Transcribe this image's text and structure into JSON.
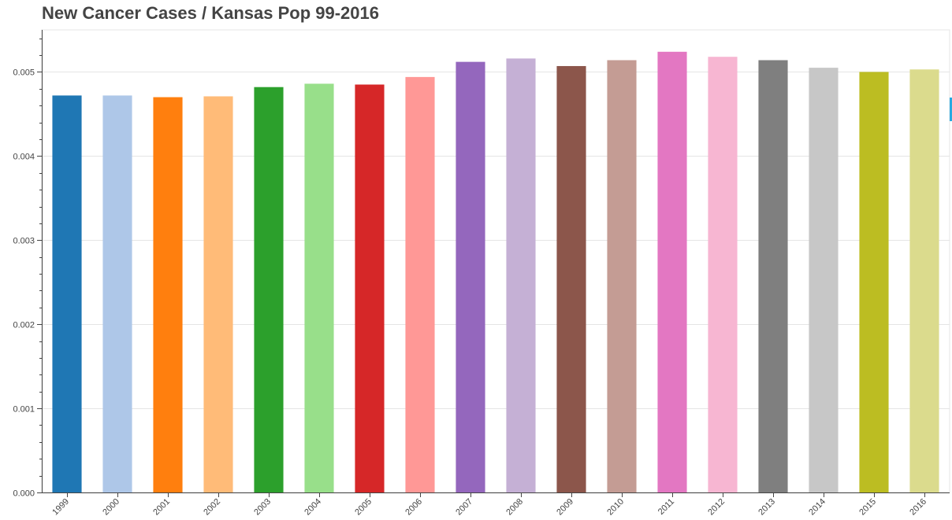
{
  "chart_data": {
    "type": "bar",
    "title": "New Cancer Cases / Kansas Pop 99-2016",
    "xlabel": "",
    "ylabel": "",
    "categories": [
      "1999",
      "2000",
      "2001",
      "2002",
      "2003",
      "2004",
      "2005",
      "2006",
      "2007",
      "2008",
      "2009",
      "2010",
      "2011",
      "2012",
      "2013",
      "2014",
      "2015",
      "2016"
    ],
    "values": [
      0.00472,
      0.00472,
      0.0047,
      0.00471,
      0.00482,
      0.00486,
      0.00485,
      0.00494,
      0.00512,
      0.00516,
      0.00507,
      0.00514,
      0.00524,
      0.00518,
      0.00514,
      0.00505,
      0.005,
      0.00503
    ],
    "colors": [
      "#1f77b4",
      "#aec7e8",
      "#ff7f0e",
      "#ffbb78",
      "#2ca02c",
      "#98df8a",
      "#d62728",
      "#ff9896",
      "#9467bd",
      "#c5b0d5",
      "#8c564b",
      "#c49c94",
      "#e377c2",
      "#f7b6d2",
      "#7f7f7f",
      "#c7c7c7",
      "#bcbd22",
      "#dbdb8d"
    ],
    "ylim": [
      0,
      0.0055
    ],
    "yticks": [
      "0.000",
      "0.001",
      "0.002",
      "0.003",
      "0.004",
      "0.005"
    ],
    "grid": "horizontal",
    "legend": "none"
  }
}
